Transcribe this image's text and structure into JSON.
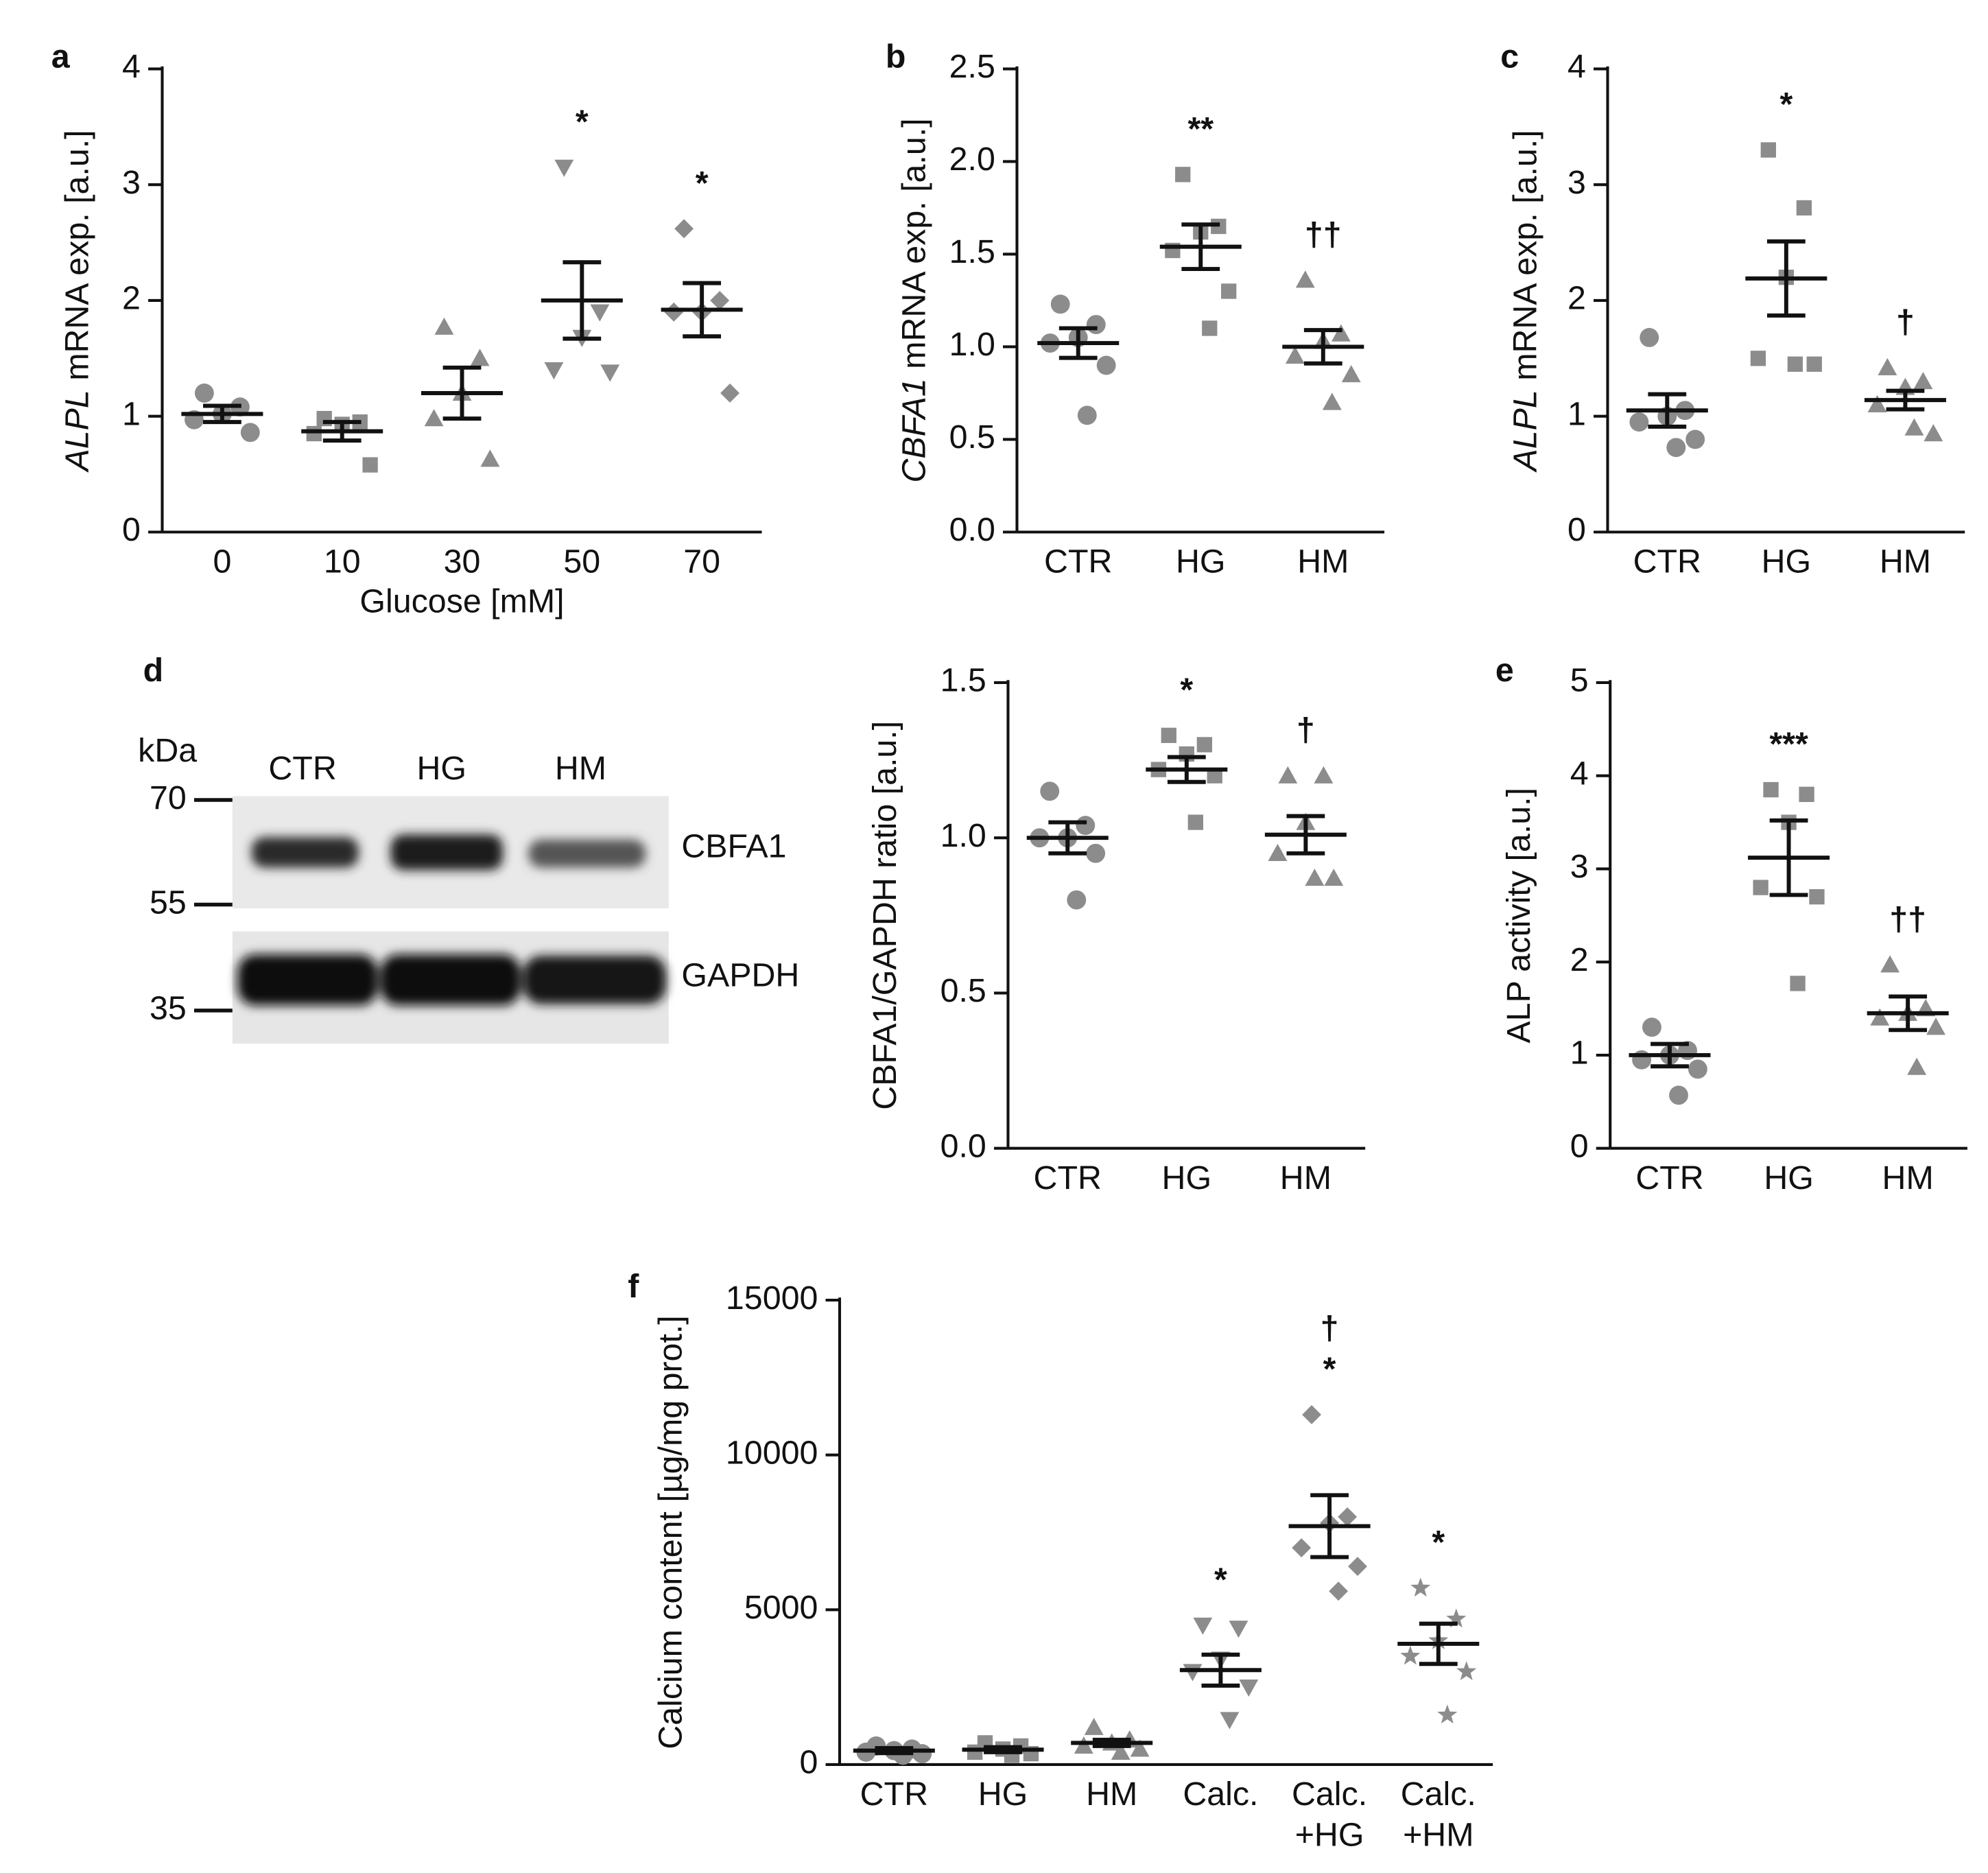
{
  "chart_data": [
    {
      "type": "dot",
      "panel": "a",
      "ylabel_gene": "ALPL",
      "ylabel": " mRNA exp. [a.u.]",
      "xlabel": "Glucose [mM]",
      "color": "#8c8c8c",
      "categories": [
        "0",
        "10",
        "30",
        "50",
        "70"
      ],
      "ylim": [
        0,
        4
      ],
      "yticks": [
        0,
        1,
        2,
        3,
        4
      ],
      "groups": [
        {
          "marker": "circle",
          "points": [
            1.2,
            1.08,
            1.02,
            0.97,
            0.86
          ],
          "mean": 1.02,
          "sem": 0.07,
          "annotation": []
        },
        {
          "marker": "square",
          "points": [
            0.98,
            0.95,
            0.93,
            0.85,
            0.58
          ],
          "mean": 0.87,
          "sem": 0.08,
          "annotation": []
        },
        {
          "marker": "triangle",
          "points": [
            1.77,
            1.5,
            1.2,
            0.98,
            0.63
          ],
          "mean": 1.2,
          "sem": 0.22,
          "annotation": []
        },
        {
          "marker": "triangle-down",
          "points": [
            3.15,
            1.9,
            1.68,
            1.4,
            1.38
          ],
          "mean": 2.0,
          "sem": 0.33,
          "annotation": [
            "*"
          ]
        },
        {
          "marker": "diamond",
          "points": [
            2.62,
            2.0,
            1.9,
            1.9,
            1.2
          ],
          "mean": 1.92,
          "sem": 0.23,
          "annotation": [
            "*"
          ]
        }
      ]
    },
    {
      "type": "dot",
      "panel": "b",
      "ylabel_gene": "CBFA1",
      "ylabel": " mRNA exp. [a.u.]",
      "color": "#8c8c8c",
      "categories": [
        "CTR",
        "HG",
        "HM"
      ],
      "ylim": [
        0,
        2.5
      ],
      "yticks": [
        {
          "value": 0,
          "label": "0.0"
        },
        0.5,
        {
          "value": 1,
          "label": "1.0"
        },
        1.5,
        {
          "value": 2,
          "label": "2.0"
        },
        2.5
      ],
      "groups": [
        {
          "marker": "circle",
          "points": [
            1.23,
            1.12,
            1.05,
            1.02,
            0.9,
            0.63
          ],
          "mean": 1.02,
          "sem": 0.08,
          "annotation": []
        },
        {
          "marker": "square",
          "points": [
            1.93,
            1.65,
            1.62,
            1.52,
            1.3,
            1.1
          ],
          "mean": 1.54,
          "sem": 0.12,
          "annotation": [
            "**"
          ]
        },
        {
          "marker": "triangle",
          "points": [
            1.36,
            1.07,
            1.03,
            0.95,
            0.85,
            0.7
          ],
          "mean": 1.0,
          "sem": 0.09,
          "annotation": [
            "††"
          ]
        }
      ]
    },
    {
      "type": "dot",
      "panel": "c",
      "ylabel_gene": "ALPL",
      "ylabel": " mRNA exp. [a.u.]",
      "color": "#8c8c8c",
      "categories": [
        "CTR",
        "HG",
        "HM"
      ],
      "ylim": [
        0,
        4
      ],
      "yticks": [
        0,
        1,
        2,
        3,
        4
      ],
      "groups": [
        {
          "marker": "circle",
          "points": [
            1.68,
            1.05,
            1.0,
            0.95,
            0.8,
            0.73
          ],
          "mean": 1.05,
          "sem": 0.14,
          "annotation": []
        },
        {
          "marker": "square",
          "points": [
            3.3,
            2.8,
            2.2,
            1.5,
            1.45,
            1.45
          ],
          "mean": 2.19,
          "sem": 0.32,
          "annotation": [
            "*"
          ]
        },
        {
          "marker": "triangle",
          "points": [
            1.42,
            1.3,
            1.25,
            1.1,
            0.85,
            0.9
          ],
          "mean": 1.14,
          "sem": 0.08,
          "annotation": [
            "†"
          ]
        }
      ]
    },
    {
      "type": "dot",
      "ylabel": "CBFA1/GAPDH ratio [a.u.]",
      "color": "#8c8c8c",
      "categories": [
        "CTR",
        "HG",
        "HM"
      ],
      "ylim": [
        0,
        1.5
      ],
      "yticks": [
        {
          "value": 0,
          "label": "0.0"
        },
        0.5,
        {
          "value": 1,
          "label": "1.0"
        },
        1.5
      ],
      "groups": [
        {
          "marker": "circle",
          "points": [
            1.15,
            1.04,
            1.0,
            1.0,
            0.95,
            0.8
          ],
          "mean": 1.0,
          "sem": 0.05,
          "annotation": []
        },
        {
          "marker": "square",
          "points": [
            1.33,
            1.3,
            1.27,
            1.22,
            1.2,
            1.05
          ],
          "mean": 1.22,
          "sem": 0.04,
          "annotation": [
            "*"
          ]
        },
        {
          "marker": "triangle",
          "points": [
            1.2,
            1.2,
            1.05,
            0.95,
            0.87,
            0.87
          ],
          "mean": 1.01,
          "sem": 0.06,
          "annotation": [
            "†"
          ]
        }
      ]
    },
    {
      "type": "dot",
      "panel": "e",
      "ylabel": "ALP activity [a.u.]",
      "color": "#8c8c8c",
      "categories": [
        "CTR",
        "HG",
        "HM"
      ],
      "ylim": [
        0,
        5
      ],
      "yticks": [
        0,
        1,
        2,
        3,
        4,
        5
      ],
      "groups": [
        {
          "marker": "circle",
          "points": [
            1.3,
            1.05,
            1.0,
            0.95,
            0.85,
            0.57
          ],
          "mean": 1.0,
          "sem": 0.12,
          "annotation": []
        },
        {
          "marker": "square",
          "points": [
            3.85,
            3.8,
            3.5,
            2.8,
            2.7,
            1.77
          ],
          "mean": 3.12,
          "sem": 0.4,
          "annotation": [
            "***"
          ]
        },
        {
          "marker": "triangle",
          "points": [
            1.97,
            1.5,
            1.45,
            1.4,
            1.3,
            0.87
          ],
          "mean": 1.45,
          "sem": 0.18,
          "annotation": [
            "††"
          ]
        }
      ]
    },
    {
      "type": "dot",
      "panel": "f",
      "ylabel": "Calcium content [µg/mg prot.]",
      "color": "#8c8c8c",
      "categories": [
        "CTR",
        "HG",
        "HM",
        "Calc.",
        [
          "Calc.",
          "+HG"
        ],
        [
          "Calc.",
          "+HM"
        ]
      ],
      "ylim": [
        0,
        15000
      ],
      "yticks": [
        0,
        5000,
        10000,
        15000
      ],
      "groups": [
        {
          "marker": "circle",
          "points": [
            600,
            500,
            450,
            400,
            350,
            300
          ],
          "mean": 450,
          "sem": 80,
          "annotation": []
        },
        {
          "marker": "square",
          "points": [
            700,
            600,
            500,
            400,
            350,
            300
          ],
          "mean": 480,
          "sem": 80,
          "annotation": []
        },
        {
          "marker": "triangle",
          "points": [
            1200,
            800,
            700,
            600,
            500,
            400
          ],
          "mean": 700,
          "sem": 100,
          "annotation": []
        },
        {
          "marker": "triangle-down",
          "points": [
            4500,
            4400,
            3400,
            3000,
            2500,
            1450
          ],
          "mean": 3050,
          "sem": 500,
          "annotation": [
            "*"
          ]
        },
        {
          "marker": "diamond",
          "points": [
            11300,
            8000,
            7800,
            7000,
            6400,
            5600
          ],
          "mean": 7700,
          "sem": 1000,
          "annotation": [
            "†",
            "*"
          ]
        },
        {
          "marker": "star",
          "points": [
            5700,
            4700,
            4000,
            3500,
            3000,
            1600
          ],
          "mean": 3900,
          "sem": 650,
          "annotation": [
            "*"
          ]
        }
      ]
    }
  ],
  "blot": {
    "panel": "d",
    "unit": "kDa",
    "markers": [
      70,
      55,
      35
    ],
    "lanes": [
      "CTR",
      "HG",
      "HM"
    ],
    "bands": [
      "CBFA1",
      "GAPDH"
    ]
  }
}
